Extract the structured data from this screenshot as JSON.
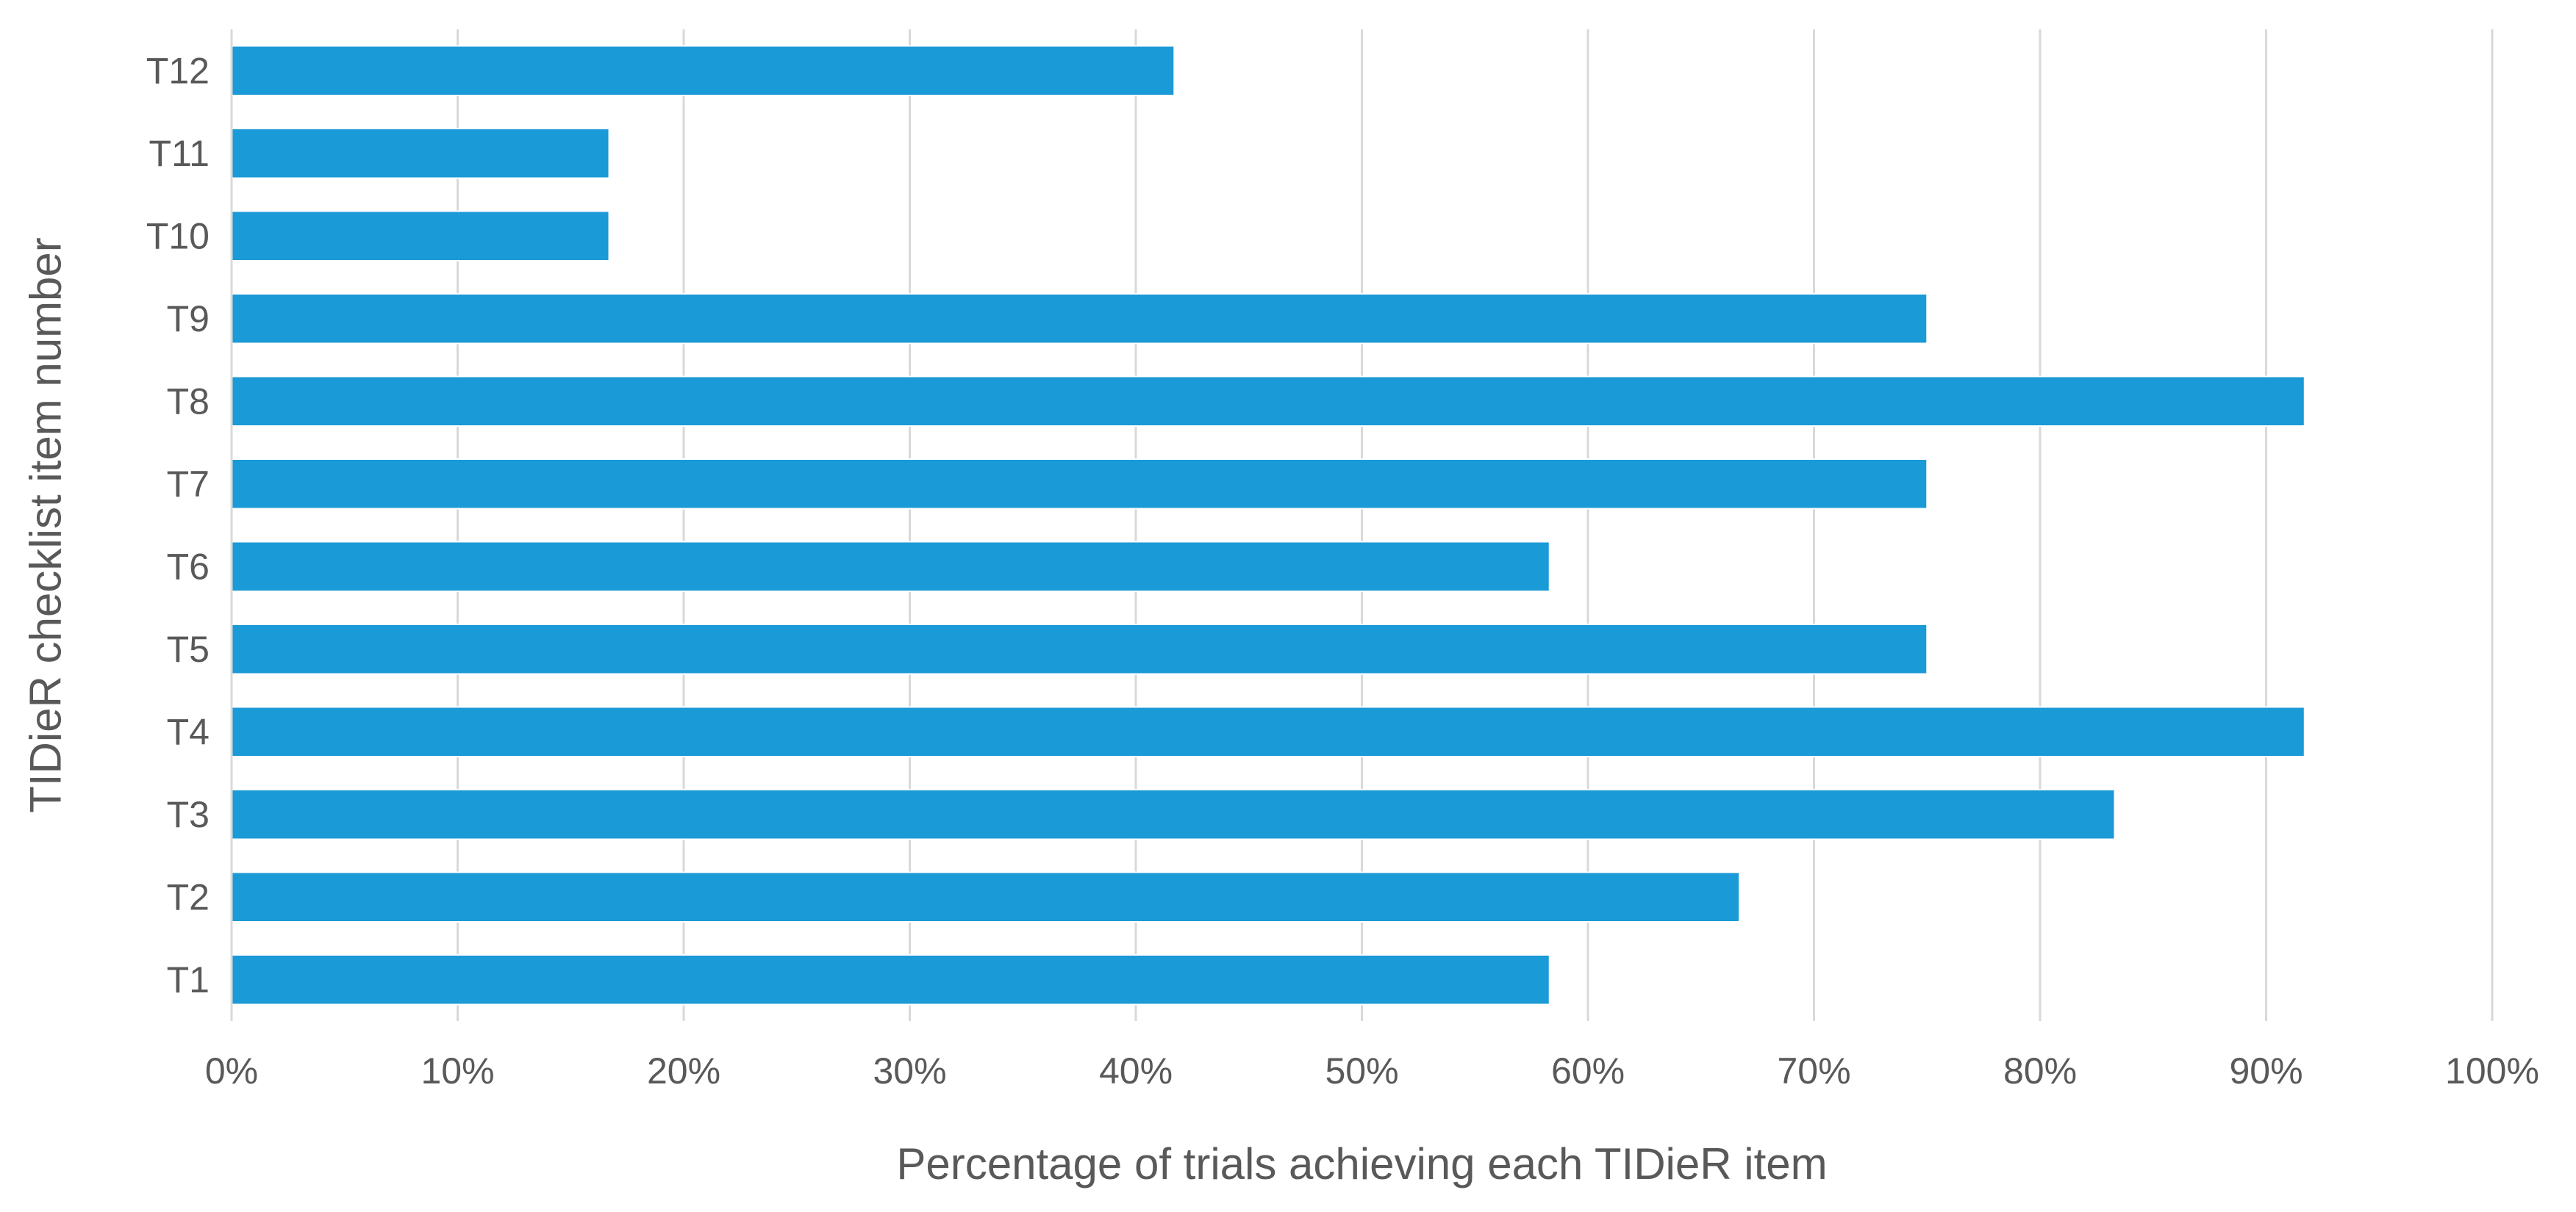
{
  "chart_data": {
    "type": "bar",
    "orientation": "horizontal",
    "categories": [
      "T1",
      "T2",
      "T3",
      "T4",
      "T5",
      "T6",
      "T7",
      "T8",
      "T9",
      "T10",
      "T11",
      "T12"
    ],
    "values": [
      58.3,
      66.7,
      83.3,
      91.7,
      75.0,
      58.3,
      75.0,
      91.7,
      75.0,
      16.7,
      16.7,
      41.7
    ],
    "xlabel": "Percentage of trials achieving each TIDieR item",
    "ylabel": "TIDieR checklist item number",
    "xlim": [
      0,
      100
    ],
    "x_ticks": [
      0,
      10,
      20,
      30,
      40,
      50,
      60,
      70,
      80,
      90,
      100
    ],
    "x_tick_labels": [
      "0%",
      "10%",
      "20%",
      "30%",
      "40%",
      "50%",
      "60%",
      "70%",
      "80%",
      "90%",
      "100%"
    ],
    "grid": true,
    "bar_color": "#1a9ad6",
    "legend": "none"
  }
}
